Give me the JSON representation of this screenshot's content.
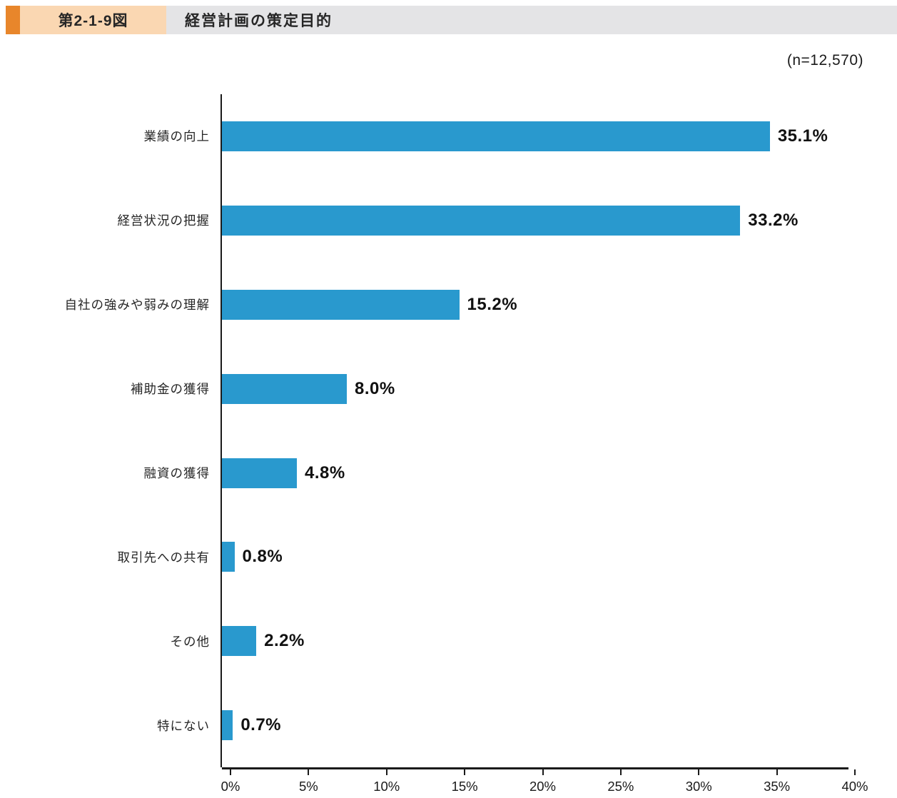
{
  "header": {
    "figure_number": "第2-1-9図",
    "title": "経営計画の策定目的",
    "accent_color": "#E8862B",
    "figure_number_bg": "#FAD7B2",
    "title_bg": "#E4E4E6"
  },
  "sample_label": "(n=12,570)",
  "chart_data": {
    "type": "bar",
    "orientation": "horizontal",
    "title": "経営計画の策定目的",
    "n": "12,570",
    "categories": [
      "業績の向上",
      "経営状況の把握",
      "自社の強みや弱みの理解",
      "補助金の獲得",
      "融資の獲得",
      "取引先への共有",
      "その他",
      "特にない"
    ],
    "values": [
      35.1,
      33.2,
      15.2,
      8.0,
      4.8,
      0.8,
      2.2,
      0.7
    ],
    "value_labels": [
      "35.1%",
      "33.2%",
      "15.2%",
      "8.0%",
      "4.8%",
      "0.8%",
      "2.2%",
      "0.7%"
    ],
    "xlim": [
      0,
      40
    ],
    "x_ticks": [
      "0%",
      "5%",
      "10%",
      "15%",
      "20%",
      "25%",
      "30%",
      "35%",
      "40%"
    ],
    "bar_color": "#2999CE",
    "axis_color": "#1a1a1a",
    "grid": false,
    "legend": false
  }
}
